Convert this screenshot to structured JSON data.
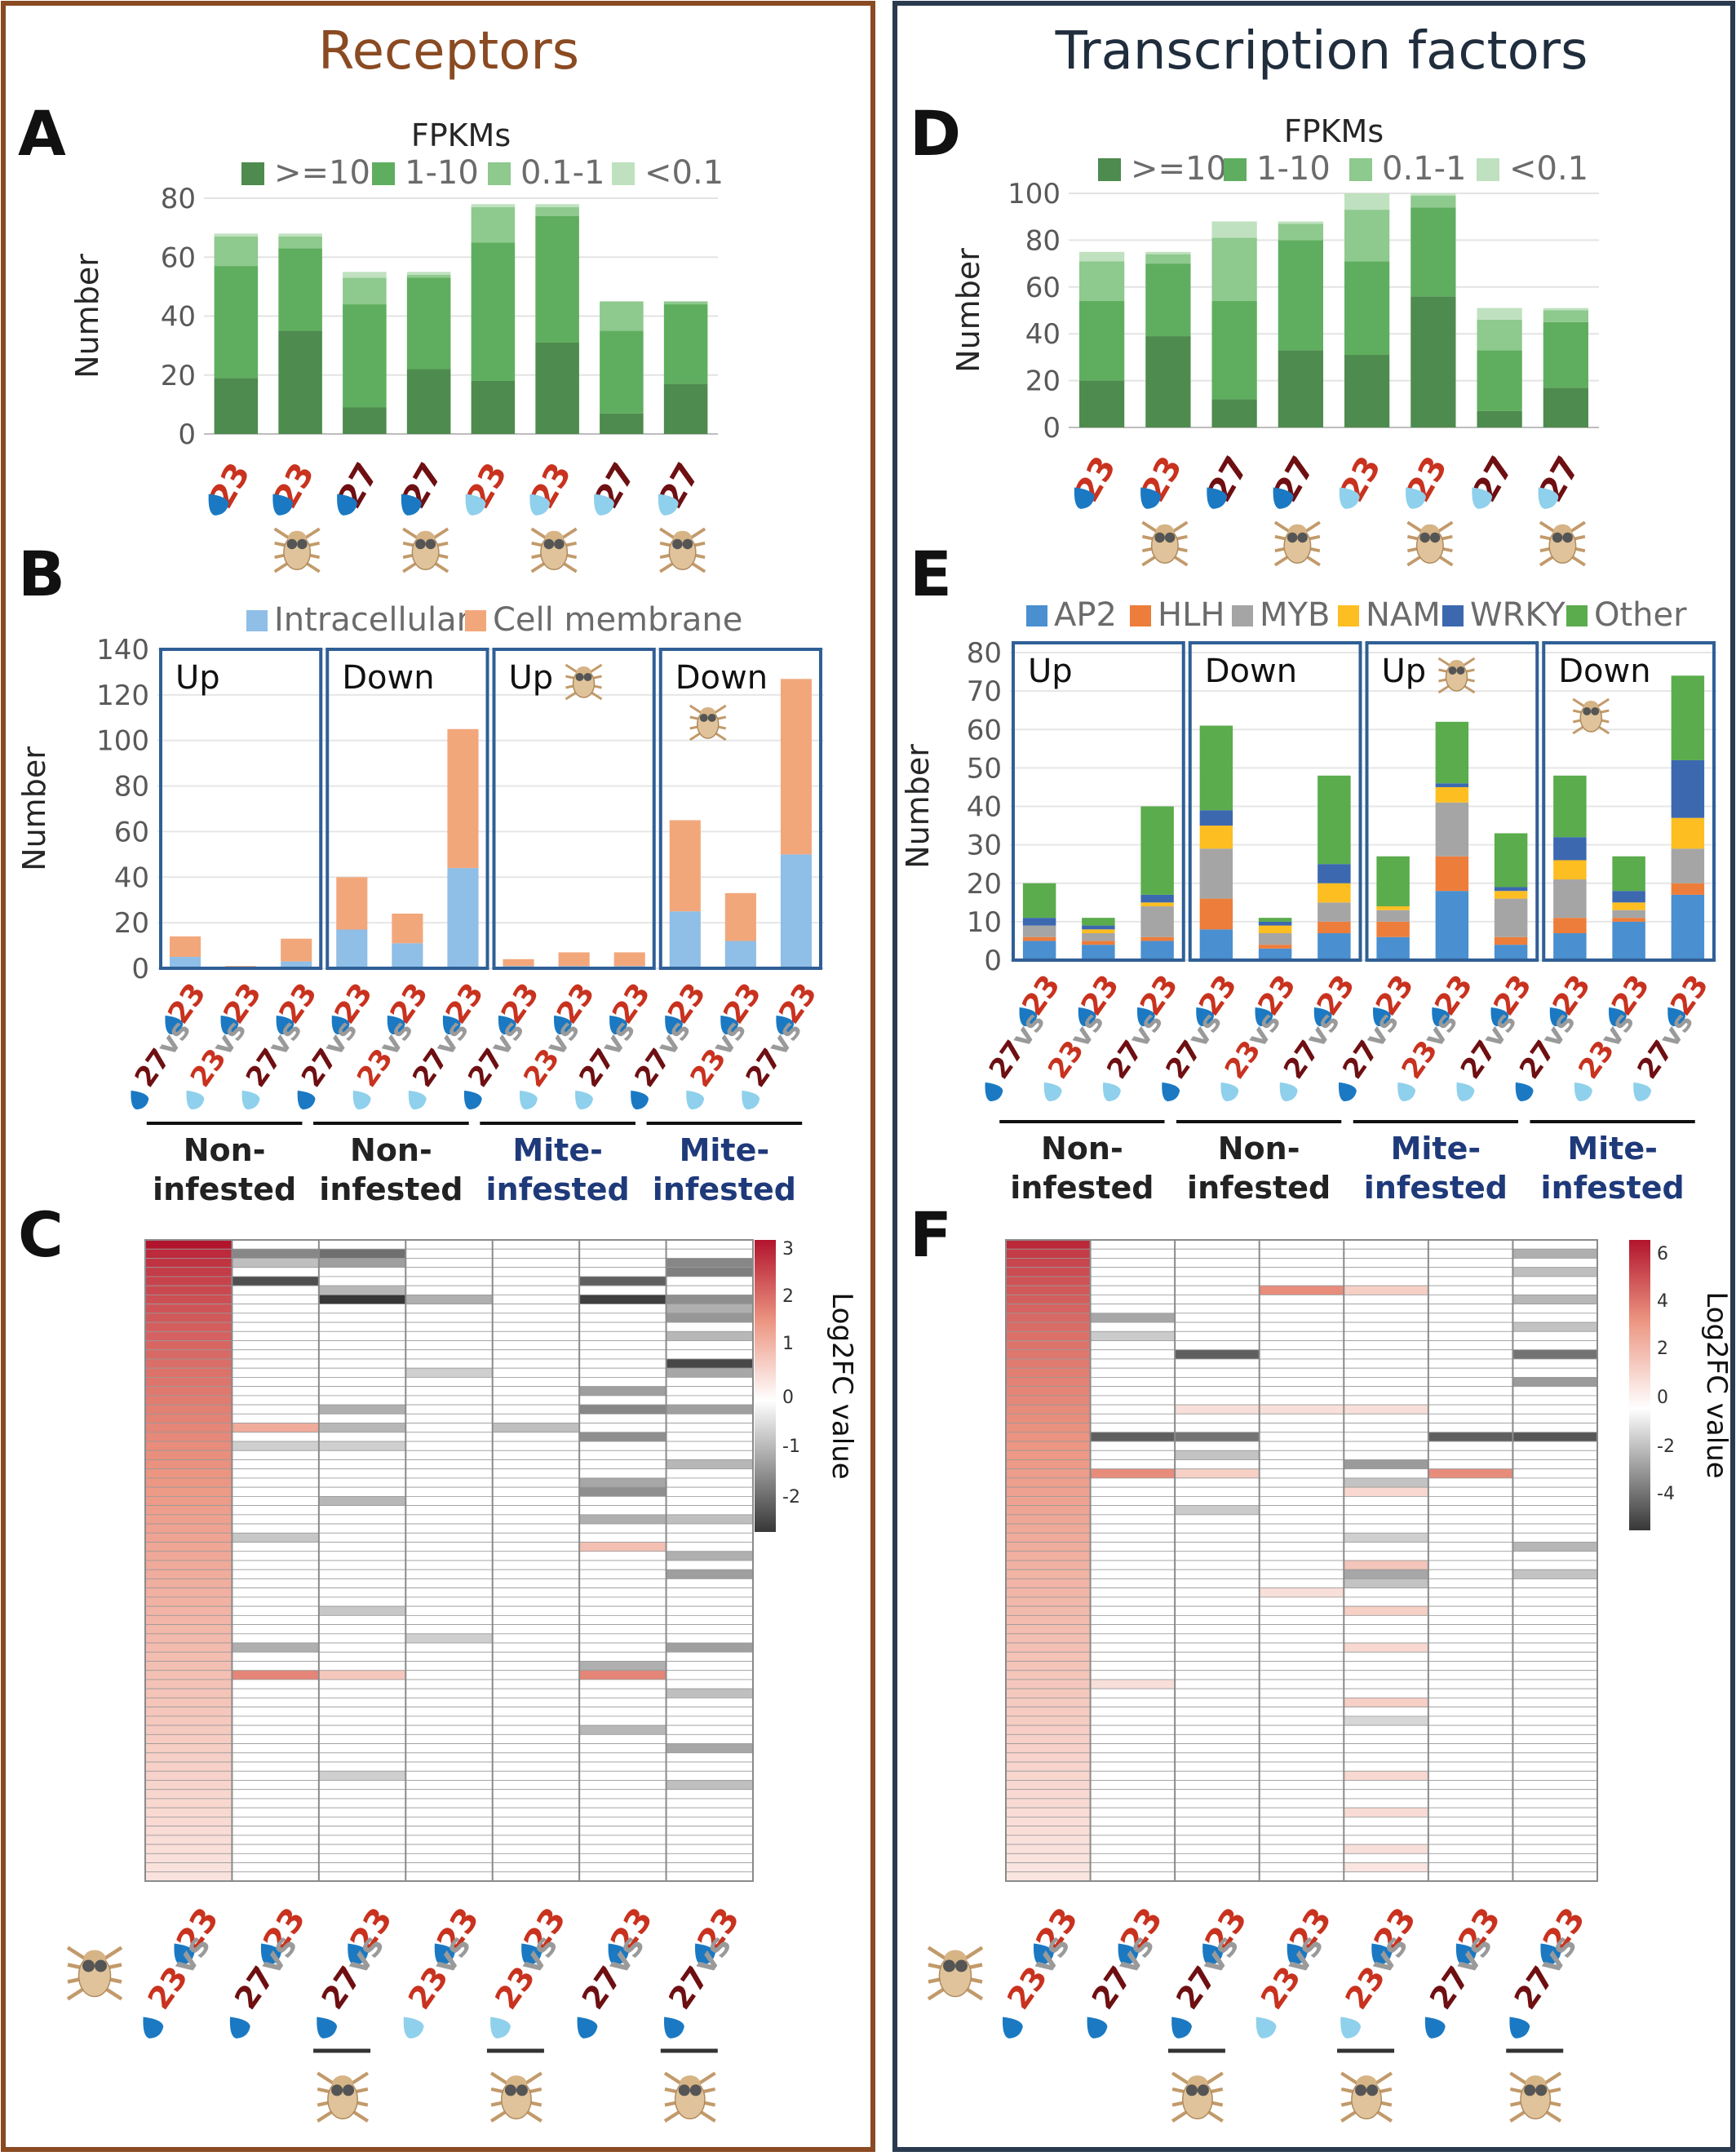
{
  "colors": {
    "green_ge10": "#4e8b4e",
    "green_1_10": "#5fae5f",
    "green_01_1": "#8ec98e",
    "green_lt01": "#bfe1bf",
    "intracellular": "#8fbee6",
    "cell_membrane": "#f2a77b",
    "ap2": "#4a8fd0",
    "hlh": "#ed7d3a",
    "myb": "#a5a5a5",
    "nam": "#fdbe22",
    "wrky": "#3c68b0",
    "other": "#5aac4c",
    "panel_left_border": "#8a4a22",
    "panel_right_border": "#2a3a4f",
    "header_left": "#8a4a22",
    "header_right": "#1f2d3d",
    "temp_23": "#c8321e",
    "temp_27": "#6e0f12",
    "mite_group": "#1f3a7a",
    "drop_dark": "#1a79c2",
    "drop_light": "#8fd0ec"
  },
  "headers": {
    "left": "Receptors",
    "right": "Transcription factors"
  },
  "panel_letters": [
    "A",
    "B",
    "C",
    "D",
    "E",
    "F"
  ],
  "legend_fpkm_title": "FPKMs",
  "icons": {
    "drop": "water-drop-icon",
    "mite": "mite-icon"
  },
  "x_labels_A": [
    "23",
    "23",
    "27",
    "27",
    "23",
    "23",
    "27",
    "27"
  ],
  "x_labels_B": [
    "23",
    "23",
    "23",
    "23",
    "23",
    "23",
    "23",
    "23",
    "23",
    "23",
    "23",
    "23"
  ],
  "x_labels_B_lower": [
    "27vs",
    "23vs",
    "27vs",
    "27vs",
    "23vs",
    "27vs",
    "27vs",
    "23vs",
    "27vs",
    "27vs",
    "23vs",
    "27vs"
  ],
  "box_labels": [
    "Up",
    "Down",
    "Up",
    "Down"
  ],
  "group_labels": [
    {
      "line1": "Non-",
      "line2": "infested"
    },
    {
      "line1": "Non-",
      "line2": "infested"
    },
    {
      "line1": "Mite-",
      "line2": "infested"
    },
    {
      "line1": "Mite-",
      "line2": "infested"
    }
  ],
  "heatmap_col_labels": [
    {
      "a": "23",
      "b": "23"
    },
    {
      "a": "27",
      "b": "23"
    },
    {
      "a": "27",
      "b": "23"
    },
    {
      "a": "23",
      "b": "23"
    },
    {
      "a": "23",
      "b": "23"
    },
    {
      "a": "27",
      "b": "23"
    },
    {
      "a": "27",
      "b": "23"
    }
  ],
  "heatmap_vs": "vs",
  "colorbar_title": "Log2FC value",
  "colorbar_C_ticks": [
    "3",
    "2",
    "1",
    "0",
    "-1",
    "-2"
  ],
  "colorbar_F_ticks": [
    "6",
    "4",
    "2",
    "0",
    "-2",
    "-4"
  ],
  "chart_data": [
    {
      "id": "A",
      "type": "bar",
      "stacked": true,
      "ylabel": "Number",
      "ylim": [
        0,
        80
      ],
      "yticks": [
        0,
        20,
        40,
        60,
        80
      ],
      "legend_title": "FPKMs",
      "categories": [
        "23",
        "23",
        "27",
        "27",
        "23",
        "23",
        "27",
        "27"
      ],
      "series": [
        {
          "name": ">=10",
          "values": [
            19,
            35,
            9,
            22,
            18,
            31,
            7,
            17
          ]
        },
        {
          "name": "1-10",
          "values": [
            38,
            28,
            35,
            31,
            47,
            43,
            28,
            27
          ]
        },
        {
          "name": "0.1-1",
          "values": [
            10,
            4,
            9,
            1,
            12,
            3,
            10,
            1
          ]
        },
        {
          "name": "<0.1",
          "values": [
            1,
            1,
            2,
            1,
            1,
            1,
            0,
            0
          ]
        }
      ]
    },
    {
      "id": "B",
      "type": "bar",
      "stacked": true,
      "ylabel": "Number",
      "ylim": [
        0,
        140
      ],
      "yticks": [
        0,
        20,
        40,
        60,
        80,
        100,
        120,
        140
      ],
      "legend_position": "top",
      "series": [
        {
          "name": "Intracellular",
          "values": [
            5,
            0,
            3,
            17,
            11,
            44,
            1,
            1,
            1,
            25,
            12,
            50
          ]
        },
        {
          "name": "Cell membrane",
          "values": [
            9,
            1,
            10,
            23,
            13,
            61,
            3,
            6,
            6,
            40,
            21,
            77
          ]
        }
      ]
    },
    {
      "id": "D",
      "type": "bar",
      "stacked": true,
      "ylabel": "Number",
      "ylim": [
        0,
        100
      ],
      "yticks": [
        0,
        20,
        40,
        60,
        80,
        100
      ],
      "legend_title": "FPKMs",
      "categories": [
        "23",
        "23",
        "27",
        "27",
        "23",
        "23",
        "27",
        "27"
      ],
      "series": [
        {
          "name": ">=10",
          "values": [
            20,
            39,
            12,
            33,
            31,
            56,
            7,
            17
          ]
        },
        {
          "name": "1-10",
          "values": [
            34,
            31,
            42,
            47,
            40,
            38,
            26,
            28
          ]
        },
        {
          "name": "0.1-1",
          "values": [
            17,
            4,
            27,
            7,
            22,
            5,
            13,
            5
          ]
        },
        {
          "name": "<0.1",
          "values": [
            4,
            1,
            7,
            1,
            7,
            1,
            5,
            1
          ]
        }
      ]
    },
    {
      "id": "E",
      "type": "bar",
      "stacked": true,
      "ylabel": "Number",
      "ylim": [
        0,
        80
      ],
      "yticks": [
        0,
        10,
        20,
        30,
        40,
        50,
        60,
        70,
        80
      ],
      "series": [
        {
          "name": "AP2",
          "values": [
            5,
            4,
            5,
            8,
            3,
            7,
            6,
            18,
            4,
            7,
            10,
            17
          ]
        },
        {
          "name": "HLH",
          "values": [
            1,
            1,
            1,
            8,
            1,
            3,
            4,
            9,
            2,
            4,
            1,
            3
          ]
        },
        {
          "name": "MYB",
          "values": [
            3,
            2,
            8,
            13,
            3,
            5,
            3,
            14,
            10,
            10,
            2,
            9
          ]
        },
        {
          "name": "NAM",
          "values": [
            0,
            1,
            1,
            6,
            2,
            5,
            1,
            4,
            2,
            5,
            2,
            8
          ]
        },
        {
          "name": "WRKY",
          "values": [
            2,
            1,
            2,
            4,
            1,
            5,
            0,
            1,
            1,
            6,
            3,
            15
          ]
        },
        {
          "name": "Other",
          "values": [
            9,
            2,
            23,
            22,
            1,
            23,
            13,
            16,
            14,
            16,
            9,
            22
          ]
        }
      ]
    },
    {
      "id": "C",
      "type": "heatmap",
      "rows": 70,
      "cols": 7,
      "value_label": "Log2FC value",
      "range": [
        -2.5,
        3
      ],
      "col1": {
        "top": 3,
        "bottom": 0.4
      },
      "events": [
        [
          1,
          1,
          -1.5
        ],
        [
          1,
          2,
          -1.8
        ],
        [
          2,
          1,
          -0.8
        ],
        [
          2,
          2,
          -1.2
        ],
        [
          2,
          6,
          -1.5
        ],
        [
          3,
          6,
          -1.6
        ],
        [
          4,
          1,
          -2.2
        ],
        [
          4,
          5,
          -2
        ],
        [
          5,
          2,
          -0.9
        ],
        [
          6,
          2,
          -2.5
        ],
        [
          6,
          3,
          -1
        ],
        [
          6,
          5,
          -2.4
        ],
        [
          6,
          6,
          -1.4
        ],
        [
          7,
          6,
          -1
        ],
        [
          8,
          6,
          -1.3
        ],
        [
          10,
          6,
          -0.9
        ],
        [
          13,
          6,
          -2.3
        ],
        [
          14,
          3,
          -0.6
        ],
        [
          14,
          6,
          -1.1
        ],
        [
          16,
          5,
          -1.2
        ],
        [
          18,
          2,
          -1
        ],
        [
          18,
          5,
          -1.5
        ],
        [
          18,
          6,
          -1.2
        ],
        [
          20,
          1,
          1.2
        ],
        [
          20,
          2,
          -0.9
        ],
        [
          20,
          4,
          -0.8
        ],
        [
          21,
          5,
          -1.4
        ],
        [
          22,
          1,
          -0.6
        ],
        [
          22,
          2,
          -0.6
        ],
        [
          24,
          6,
          -0.9
        ],
        [
          26,
          5,
          -1.1
        ],
        [
          27,
          5,
          -1.4
        ],
        [
          28,
          2,
          -0.9
        ],
        [
          30,
          5,
          -1
        ],
        [
          30,
          6,
          -0.8
        ],
        [
          32,
          1,
          -0.7
        ],
        [
          33,
          5,
          0.9
        ],
        [
          34,
          6,
          -1
        ],
        [
          36,
          6,
          -1.2
        ],
        [
          40,
          2,
          -0.7
        ],
        [
          43,
          3,
          -0.6
        ],
        [
          44,
          1,
          -1
        ],
        [
          44,
          6,
          -1.2
        ],
        [
          46,
          5,
          -1
        ],
        [
          47,
          1,
          1.7
        ],
        [
          47,
          2,
          0.8
        ],
        [
          47,
          5,
          1.7
        ],
        [
          49,
          6,
          -0.8
        ],
        [
          53,
          5,
          -0.9
        ],
        [
          55,
          6,
          -1.1
        ],
        [
          58,
          2,
          -0.6
        ],
        [
          59,
          6,
          -0.8
        ]
      ]
    },
    {
      "id": "F",
      "type": "heatmap",
      "rows": 70,
      "cols": 7,
      "value_label": "Log2FC value",
      "range": [
        -5,
        6.5
      ],
      "col1": {
        "top": 6,
        "bottom": 0.8
      },
      "events": [
        [
          1,
          6,
          -2
        ],
        [
          3,
          6,
          -1.6
        ],
        [
          5,
          4,
          1.5
        ],
        [
          5,
          3,
          3.5
        ],
        [
          6,
          6,
          -1.8
        ],
        [
          8,
          1,
          -2.2
        ],
        [
          9,
          6,
          -1.5
        ],
        [
          10,
          1,
          -1.3
        ],
        [
          12,
          2,
          -4
        ],
        [
          12,
          6,
          -3.5
        ],
        [
          15,
          6,
          -2.5
        ],
        [
          18,
          2,
          1
        ],
        [
          18,
          3,
          1
        ],
        [
          18,
          4,
          1
        ],
        [
          21,
          1,
          -4
        ],
        [
          21,
          2,
          -3.5
        ],
        [
          21,
          5,
          -4
        ],
        [
          21,
          6,
          -4.2
        ],
        [
          23,
          2,
          -1.5
        ],
        [
          24,
          4,
          -2.5
        ],
        [
          25,
          1,
          3.5
        ],
        [
          25,
          2,
          1.5
        ],
        [
          25,
          5,
          3.5
        ],
        [
          26,
          4,
          -1.5
        ],
        [
          27,
          4,
          1.2
        ],
        [
          29,
          2,
          -1.3
        ],
        [
          32,
          4,
          -1.2
        ],
        [
          33,
          6,
          -1.8
        ],
        [
          35,
          4,
          1.8
        ],
        [
          36,
          4,
          -2.2
        ],
        [
          36,
          6,
          -1.5
        ],
        [
          37,
          4,
          -1.5
        ],
        [
          38,
          3,
          1
        ],
        [
          40,
          4,
          1.5
        ],
        [
          44,
          4,
          1.2
        ],
        [
          48,
          1,
          1
        ],
        [
          50,
          4,
          1.5
        ],
        [
          52,
          4,
          -1
        ],
        [
          58,
          4,
          1.2
        ],
        [
          62,
          4,
          1.1
        ],
        [
          66,
          4,
          1
        ],
        [
          68,
          4,
          0.8
        ]
      ]
    }
  ]
}
